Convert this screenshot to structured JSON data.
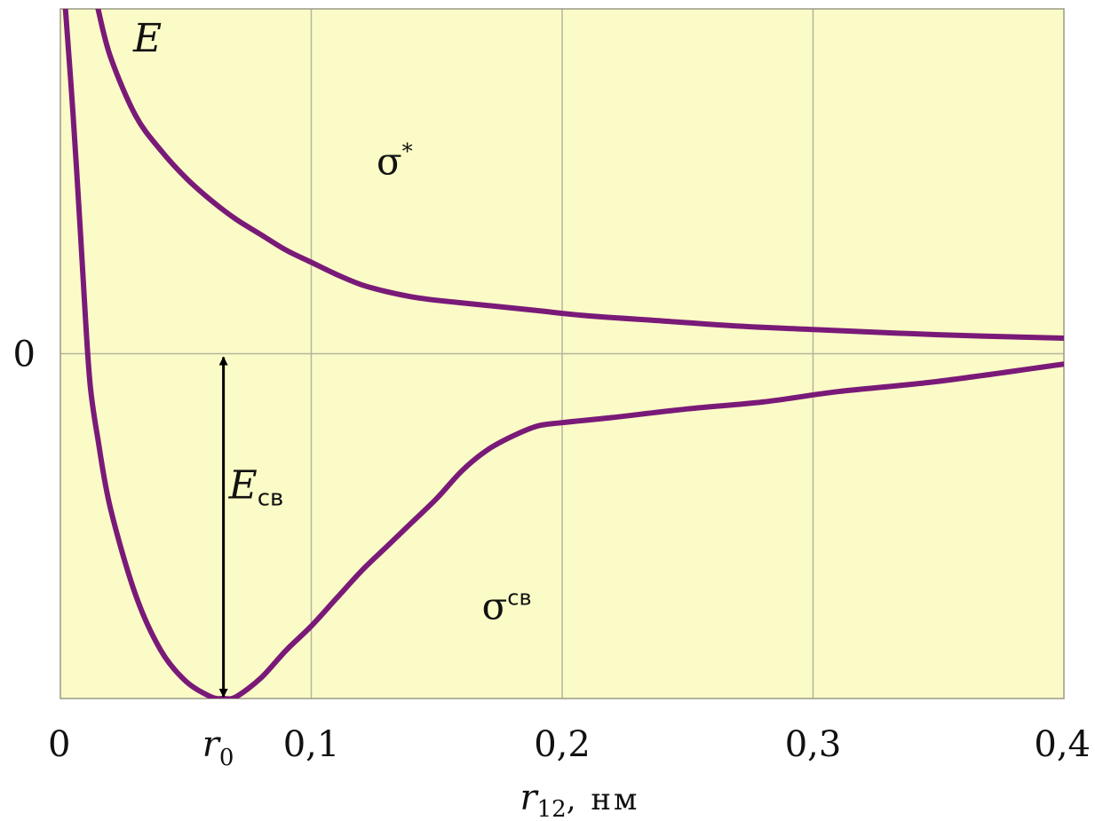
{
  "chart_data": {
    "type": "line",
    "xlabel": {
      "var": "r",
      "sub": "12",
      "unit": ", нм"
    },
    "ylabel": "E",
    "xlim": [
      0,
      0.4
    ],
    "ylim": [
      -1.0,
      1.0
    ],
    "x_ticks": [
      {
        "value": 0,
        "label": "0"
      },
      {
        "value": 0.1,
        "label": "0,1"
      },
      {
        "value": 0.2,
        "label": "0,2"
      },
      {
        "value": 0.3,
        "label": "0,3"
      },
      {
        "value": 0.4,
        "label": "0,4"
      }
    ],
    "y_ticks": [
      {
        "value": 0,
        "label": "0"
      }
    ],
    "r0": {
      "value": 0.065,
      "var": "r",
      "sub": "0"
    },
    "grid": {
      "x": [
        0.1,
        0.2,
        0.3
      ],
      "y": [
        0
      ]
    },
    "series": [
      {
        "name": "σ*",
        "label_main": "σ",
        "label_sup": "*",
        "points": [
          [
            0.015,
            1.0
          ],
          [
            0.02,
            0.86
          ],
          [
            0.03,
            0.69
          ],
          [
            0.04,
            0.59
          ],
          [
            0.05,
            0.51
          ],
          [
            0.06,
            0.445
          ],
          [
            0.07,
            0.39
          ],
          [
            0.08,
            0.345
          ],
          [
            0.09,
            0.3
          ],
          [
            0.1,
            0.265
          ],
          [
            0.11,
            0.23
          ],
          [
            0.12,
            0.2
          ],
          [
            0.13,
            0.18
          ],
          [
            0.14,
            0.165
          ],
          [
            0.15,
            0.155
          ],
          [
            0.17,
            0.14
          ],
          [
            0.19,
            0.125
          ],
          [
            0.21,
            0.11
          ],
          [
            0.24,
            0.095
          ],
          [
            0.27,
            0.08
          ],
          [
            0.3,
            0.07
          ],
          [
            0.35,
            0.055
          ],
          [
            0.4,
            0.045
          ]
        ]
      },
      {
        "name": "σсв",
        "label_main": "σ",
        "label_sup": "св",
        "points": [
          [
            0.002,
            1.0
          ],
          [
            0.005,
            0.7
          ],
          [
            0.008,
            0.35
          ],
          [
            0.01,
            0.1
          ],
          [
            0.012,
            -0.1
          ],
          [
            0.015,
            -0.25
          ],
          [
            0.02,
            -0.45
          ],
          [
            0.03,
            -0.7
          ],
          [
            0.04,
            -0.86
          ],
          [
            0.05,
            -0.95
          ],
          [
            0.06,
            -0.995
          ],
          [
            0.065,
            -1.0
          ],
          [
            0.07,
            -0.995
          ],
          [
            0.08,
            -0.94
          ],
          [
            0.09,
            -0.86
          ],
          [
            0.1,
            -0.79
          ],
          [
            0.11,
            -0.71
          ],
          [
            0.12,
            -0.63
          ],
          [
            0.13,
            -0.56
          ],
          [
            0.14,
            -0.49
          ],
          [
            0.15,
            -0.42
          ],
          [
            0.16,
            -0.34
          ],
          [
            0.17,
            -0.28
          ],
          [
            0.18,
            -0.24
          ],
          [
            0.19,
            -0.21
          ],
          [
            0.2,
            -0.2
          ],
          [
            0.22,
            -0.185
          ],
          [
            0.25,
            -0.16
          ],
          [
            0.28,
            -0.14
          ],
          [
            0.31,
            -0.11
          ],
          [
            0.35,
            -0.08
          ],
          [
            0.4,
            -0.03
          ]
        ]
      }
    ],
    "annotation": {
      "label_main": "E",
      "label_sub": "св",
      "x": 0.065,
      "y_from": 0,
      "y_to": -1.0
    },
    "colors": {
      "background": "#fbfbc7",
      "curve": "#7a1a78",
      "grid": "#b5b5a0",
      "arrow": "#000000"
    }
  }
}
